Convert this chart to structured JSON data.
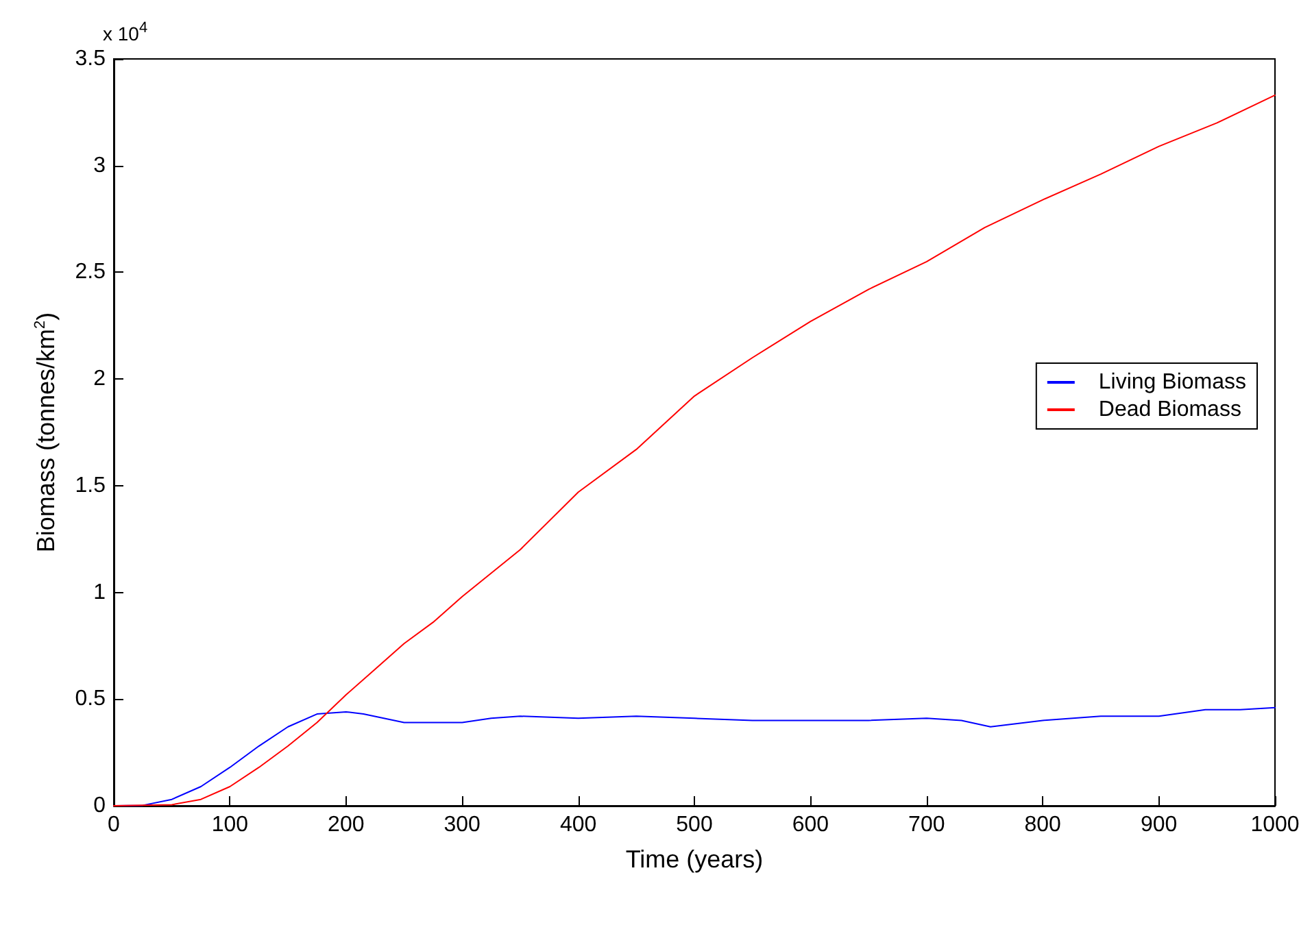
{
  "chart_data": {
    "type": "line",
    "xlabel": "Time (years)",
    "ylabel": "Biomass (tonnes/km$^{2}$)",
    "annotations": [
      "x 10$^{4}$"
    ],
    "series": [
      {
        "name": "Living Biomass",
        "color": "#0000ff",
        "x": [
          0,
          25,
          50,
          75,
          100,
          125,
          150,
          175,
          200,
          215,
          250,
          275,
          300,
          325,
          350,
          400,
          450,
          500,
          550,
          600,
          650,
          700,
          730,
          755,
          800,
          850,
          900,
          940,
          970,
          1000
        ],
        "values": [
          0,
          0.002,
          0.03,
          0.09,
          0.18,
          0.28,
          0.37,
          0.43,
          0.44,
          0.43,
          0.39,
          0.39,
          0.39,
          0.41,
          0.42,
          0.41,
          0.42,
          0.41,
          0.4,
          0.4,
          0.4,
          0.41,
          0.4,
          0.37,
          0.4,
          0.42,
          0.42,
          0.45,
          0.45,
          0.46
        ]
      },
      {
        "name": "Dead Biomass",
        "color": "#ff0000",
        "x": [
          0,
          50,
          75,
          100,
          125,
          150,
          175,
          200,
          225,
          250,
          275,
          300,
          350,
          400,
          450,
          500,
          550,
          600,
          650,
          700,
          750,
          800,
          850,
          900,
          950,
          1000
        ],
        "values": [
          0,
          0.005,
          0.03,
          0.09,
          0.18,
          0.28,
          0.39,
          0.52,
          0.64,
          0.76,
          0.86,
          0.98,
          1.2,
          1.47,
          1.67,
          1.92,
          2.1,
          2.27,
          2.42,
          2.55,
          2.71,
          2.84,
          2.96,
          3.09,
          3.2,
          3.33
        ]
      }
    ],
    "xlim": [
      0,
      1000
    ],
    "xticks": [
      0,
      100,
      200,
      300,
      400,
      500,
      600,
      700,
      800,
      900,
      1000
    ],
    "ylim": [
      0,
      3.5
    ],
    "yticks": [
      0,
      0.5,
      1,
      1.5,
      2,
      2.5,
      3,
      3.5
    ],
    "grid": false,
    "legend": "right",
    "marker": "none",
    "line_style": "solid"
  }
}
